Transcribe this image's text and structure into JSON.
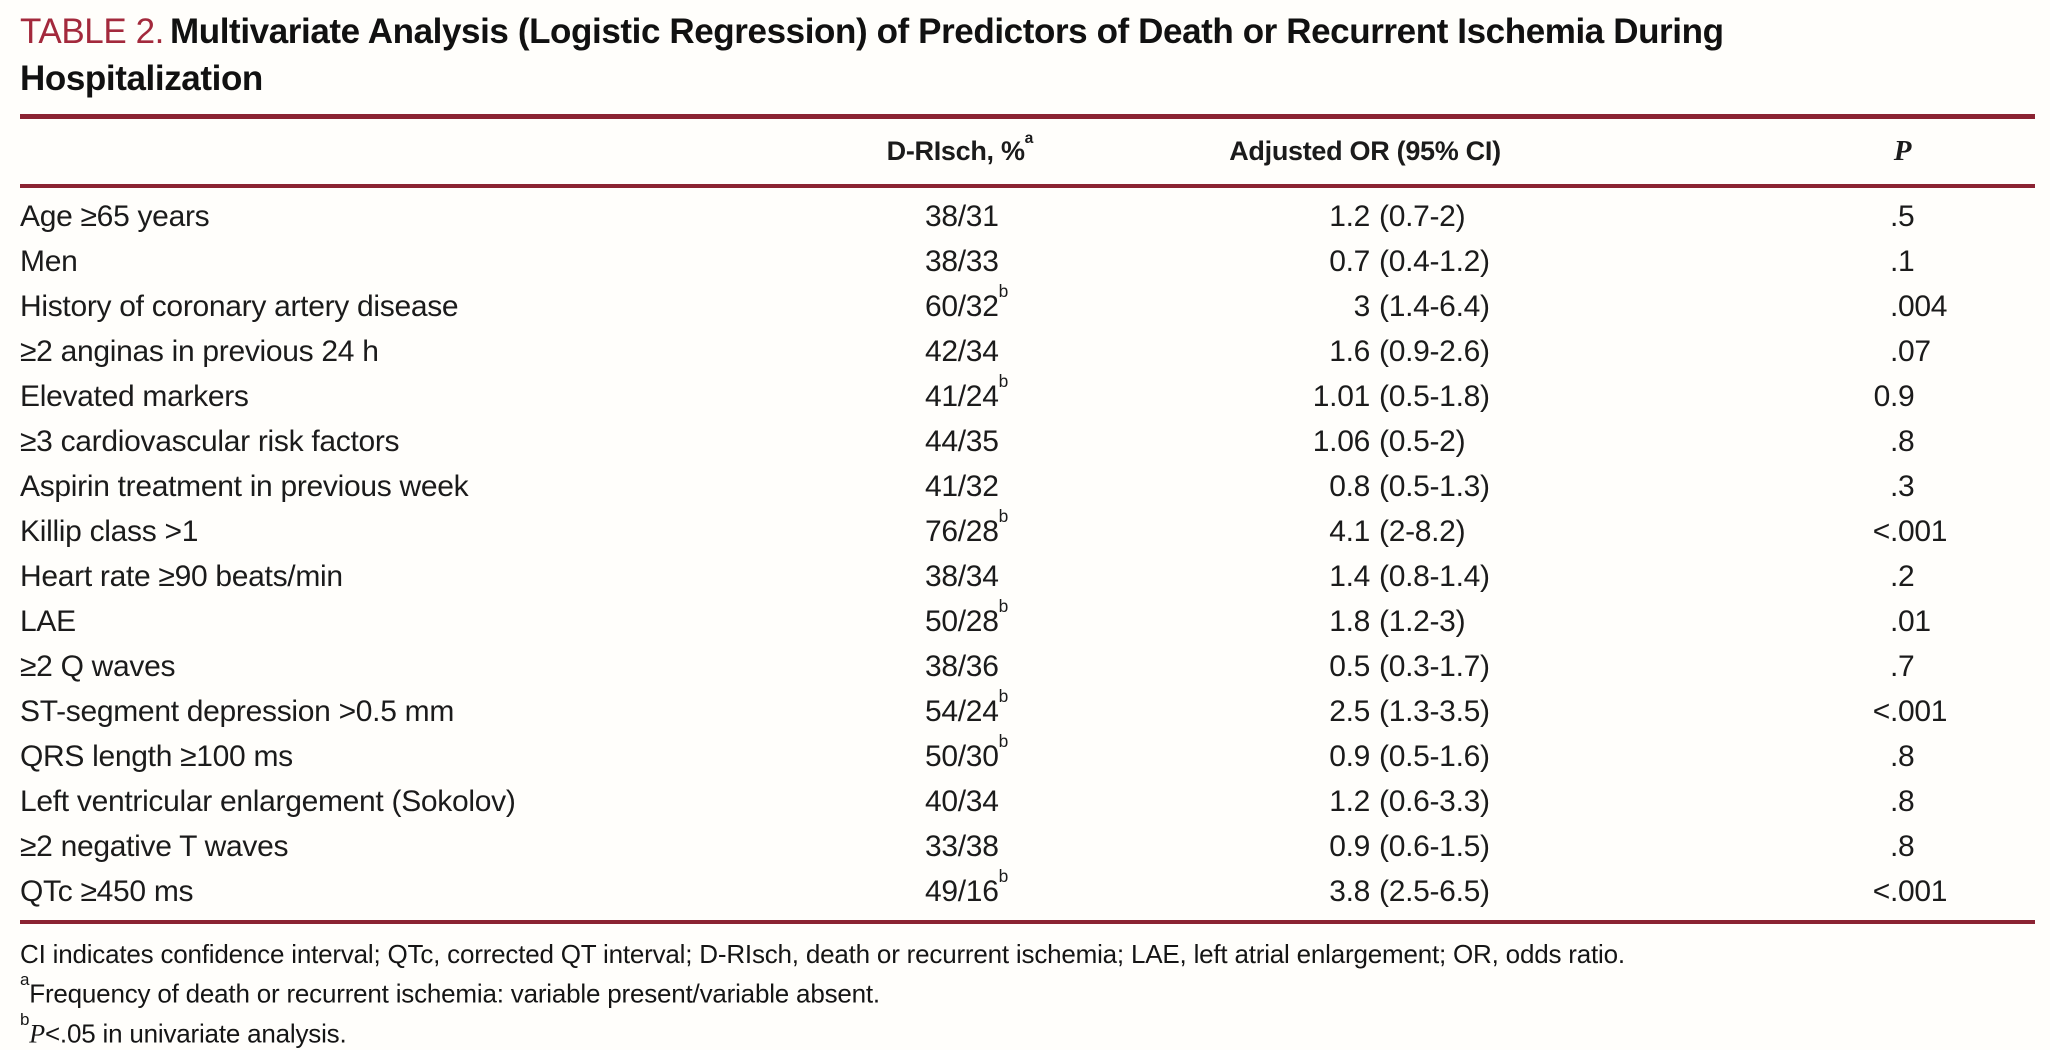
{
  "title": {
    "label": "TABLE 2.",
    "line1": "Multivariate Analysis (Logistic Regression) of Predictors of Death or Recurrent Ischemia During",
    "line2": "Hospitalization"
  },
  "colors": {
    "accent_red": "#A3293C",
    "rule_red": "#8B2332"
  },
  "table": {
    "headers": {
      "risch": "D-RIsch, %",
      "risch_sup": "a",
      "or": "Adjusted OR (95% CI)",
      "p": "P"
    },
    "rows": [
      {
        "label": "Age ≥65 years",
        "drisch": "38/31",
        "drisch_sup": "",
        "or_num": "1.2",
        "or_ci": "(0.7-2)",
        "p_pre": "",
        "p_val": ".5"
      },
      {
        "label": "Men",
        "drisch": "38/33",
        "drisch_sup": "",
        "or_num": "0.7",
        "or_ci": "(0.4-1.2)",
        "p_pre": "",
        "p_val": ".1"
      },
      {
        "label": "History of coronary artery disease",
        "drisch": "60/32",
        "drisch_sup": "b",
        "or_num": "3",
        "or_ci": "(1.4-6.4)",
        "p_pre": "",
        "p_val": ".004"
      },
      {
        "label": "≥2 anginas in previous 24 h",
        "drisch": "42/34",
        "drisch_sup": "",
        "or_num": "1.6",
        "or_ci": "(0.9-2.6)",
        "p_pre": "",
        "p_val": ".07"
      },
      {
        "label": "Elevated markers",
        "drisch": "41/24",
        "drisch_sup": "b",
        "or_num": "1.01",
        "or_ci": "(0.5-1.8)",
        "p_pre": "0",
        "p_val": ".9"
      },
      {
        "label": "≥3 cardiovascular risk factors",
        "drisch": "44/35",
        "drisch_sup": "",
        "or_num": "1.06",
        "or_ci": "(0.5-2)",
        "p_pre": "",
        "p_val": ".8"
      },
      {
        "label": "Aspirin treatment in previous week",
        "drisch": "41/32",
        "drisch_sup": "",
        "or_num": "0.8",
        "or_ci": "(0.5-1.3)",
        "p_pre": "",
        "p_val": ".3"
      },
      {
        "label": "Killip class >1",
        "drisch": "76/28",
        "drisch_sup": "b",
        "or_num": "4.1",
        "or_ci": "(2-8.2)",
        "p_pre": "<",
        "p_val": ".001"
      },
      {
        "label": "Heart rate ≥90 beats/min",
        "drisch": "38/34",
        "drisch_sup": "",
        "or_num": "1.4",
        "or_ci": "(0.8-1.4)",
        "p_pre": "",
        "p_val": ".2"
      },
      {
        "label": "LAE",
        "drisch": "50/28",
        "drisch_sup": "b",
        "or_num": "1.8",
        "or_ci": "(1.2-3)",
        "p_pre": "",
        "p_val": ".01"
      },
      {
        "label": "≥2 Q waves",
        "drisch": "38/36",
        "drisch_sup": "",
        "or_num": "0.5",
        "or_ci": "(0.3-1.7)",
        "p_pre": "",
        "p_val": ".7"
      },
      {
        "label": "ST-segment depression >0.5 mm",
        "drisch": "54/24",
        "drisch_sup": "b",
        "or_num": "2.5",
        "or_ci": "(1.3-3.5)",
        "p_pre": "<",
        "p_val": ".001"
      },
      {
        "label": "QRS length ≥100 ms",
        "drisch": "50/30",
        "drisch_sup": "b",
        "or_num": "0.9",
        "or_ci": "(0.5-1.6)",
        "p_pre": "",
        "p_val": ".8"
      },
      {
        "label": "Left ventricular enlargement (Sokolov)",
        "drisch": "40/34",
        "drisch_sup": "",
        "or_num": "1.2",
        "or_ci": "(0.6-3.3)",
        "p_pre": "",
        "p_val": ".8"
      },
      {
        "label": "≥2 negative T waves",
        "drisch": "33/38",
        "drisch_sup": "",
        "or_num": "0.9",
        "or_ci": "(0.6-1.5)",
        "p_pre": "",
        "p_val": ".8"
      },
      {
        "label": "QTc ≥450 ms",
        "drisch": "49/16",
        "drisch_sup": "b",
        "or_num": "3.8",
        "or_ci": "(2.5-6.5)",
        "p_pre": "<",
        "p_val": ".001"
      }
    ]
  },
  "footnotes": {
    "abbrev": "CI indicates confidence interval; QTc, corrected QT interval; D-RIsch, death or recurrent ischemia; LAE, left atrial enlargement; OR, odds ratio.",
    "a_sup": "a",
    "a_text": "Frequency of death or recurrent ischemia: variable present/variable absent.",
    "b_sup": "b",
    "b_italic": "P",
    "b_text": "<.05 in univariate analysis."
  }
}
